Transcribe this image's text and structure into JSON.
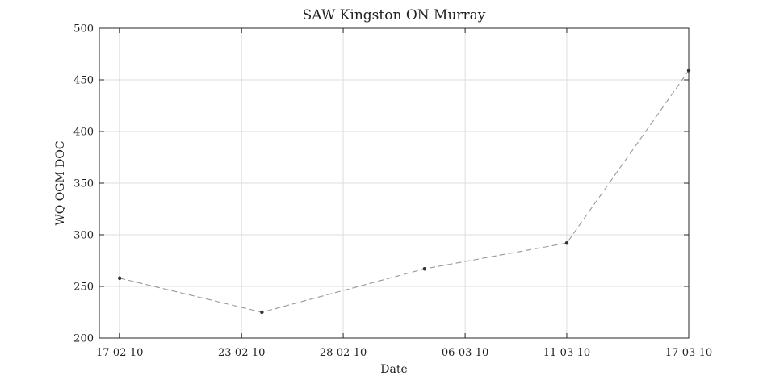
{
  "chart_data": {
    "type": "line",
    "title": "SAW Kingston ON Murray",
    "xlabel": "Date",
    "ylabel": "WQ OGM DOC",
    "x_ticks": [
      "17-02-10",
      "23-02-10",
      "28-02-10",
      "06-03-10",
      "11-03-10",
      "17-03-10"
    ],
    "xlim": [
      "2010-02-16",
      "2010-03-17"
    ],
    "ylim": [
      200,
      500
    ],
    "y_ticks": [
      200,
      250,
      300,
      350,
      400,
      450,
      500
    ],
    "grid": true,
    "series": [
      {
        "line_style": "dashed",
        "color": "#999999",
        "marker_color": "#333333",
        "points": [
          {
            "x": "2010-02-17",
            "y": 258
          },
          {
            "x": "2010-02-24",
            "y": 225
          },
          {
            "x": "2010-03-04",
            "y": 267
          },
          {
            "x": "2010-03-11",
            "y": 292
          },
          {
            "x": "2010-03-17",
            "y": 459
          }
        ]
      }
    ]
  }
}
